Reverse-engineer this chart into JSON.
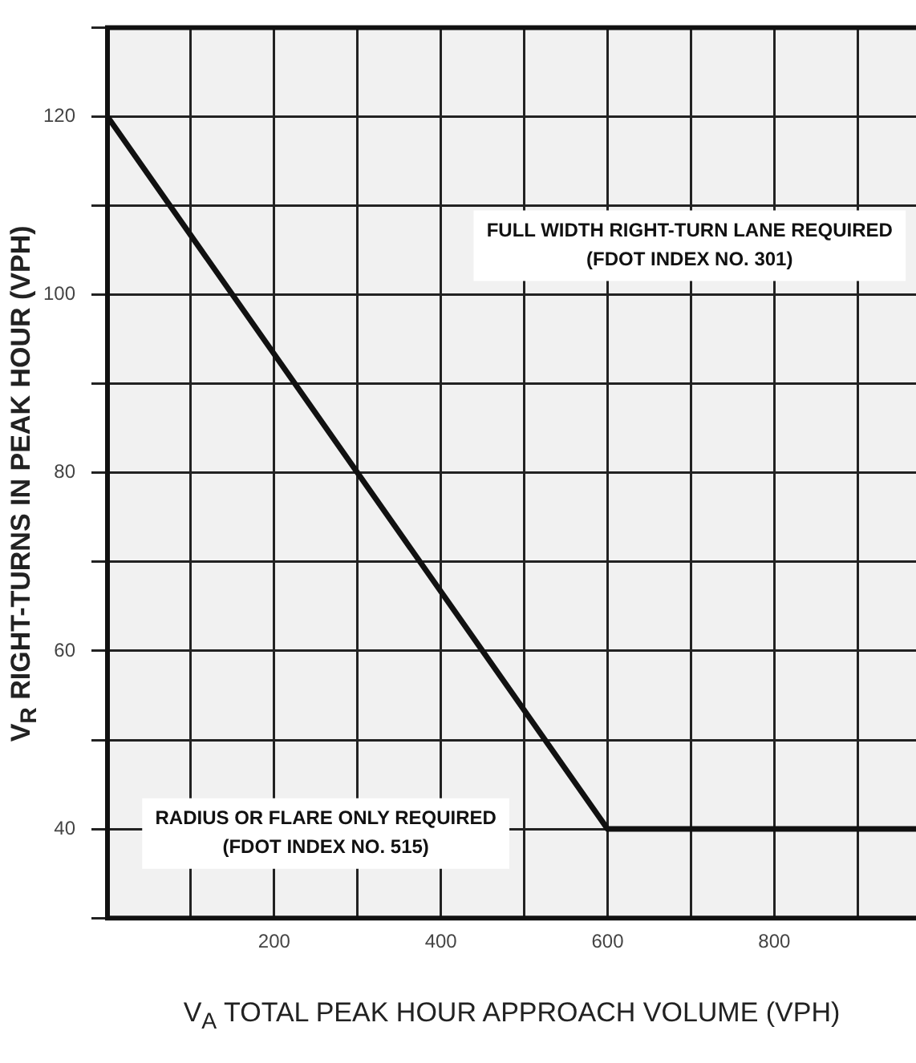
{
  "chart_data": {
    "type": "line",
    "xlabel": "V$_{A}$ TOTAL PEAK HOUR APPROACH VOLUME (VPH)",
    "ylabel": "V$_{R}$ RIGHT-TURNS IN PEAK HOUR (VPH)",
    "x": [
      0,
      600,
      970
    ],
    "series": [
      {
        "color": "#111111",
        "values": [
          120,
          40,
          40
        ]
      }
    ],
    "xlim": [
      0,
      970
    ],
    "xticks": [
      {
        "value": 0,
        "label": null
      },
      {
        "value": 100,
        "label": null
      },
      200,
      {
        "value": 300,
        "label": null
      },
      400,
      {
        "value": 500,
        "label": null
      },
      600,
      {
        "value": 700,
        "label": null
      },
      800,
      {
        "value": 900,
        "label": null
      }
    ],
    "ylim": [
      30,
      130
    ],
    "yticks": [
      {
        "value": 30,
        "label": null
      },
      40,
      {
        "value": 50,
        "label": null
      },
      60,
      {
        "value": 70,
        "label": null
      },
      80,
      {
        "value": 90,
        "label": null
      },
      100,
      {
        "value": 110,
        "label": null
      },
      120,
      {
        "value": 130,
        "label": null
      }
    ],
    "grid": true,
    "legend": false,
    "marker": "none",
    "line_style": "solid",
    "annotations": [
      "FULL WIDTH RIGHT-TURN LANE REQUIRED\n(FDOT INDEX NO. 301)",
      "RADIUS OR FLARE ONLY REQUIRED\n(FDOT INDEX NO. 515)"
    ]
  }
}
